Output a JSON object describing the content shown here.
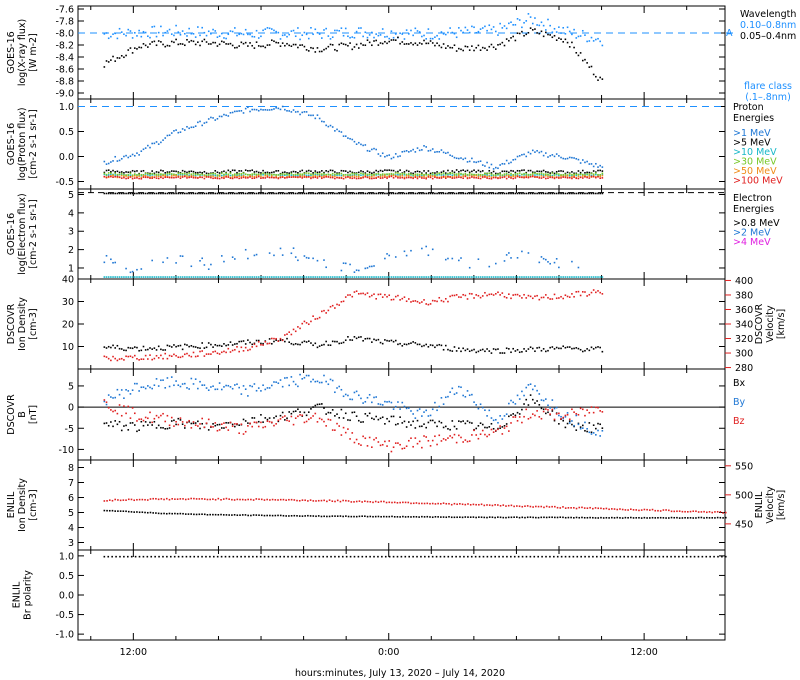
{
  "colors": {
    "black": "#000000",
    "blue": "#1f77d4",
    "light_blue": "#1e90ff",
    "cyan": "#18b8c8",
    "green": "#78c828",
    "orange": "#f08c18",
    "red": "#e02020",
    "magenta": "#e020e0"
  },
  "chart_data": {
    "type": "scatter",
    "xlabel": "hours:minutes, July 13, 2020 – July 14, 2020",
    "x_ticks": [
      "12:00",
      "0:00",
      "12:00"
    ],
    "x_range_hours": [
      -14.6,
      15.8
    ],
    "data_end_hour": 10.0,
    "panels": [
      {
        "id": "xray",
        "ylabel": [
          "GOES-16",
          "log(X-ray flux)",
          "[W m-2]"
        ],
        "yticks": [
          "-7.6",
          "-7.8",
          "-8.0",
          "-8.2",
          "-8.4",
          "-8.6",
          "-8.8",
          "-9.0"
        ],
        "ylim": [
          -9.1,
          -7.55
        ],
        "legend_title": "Wavelength",
        "legend": [
          "0.10–0.8nm",
          "0.05–0.4nm"
        ],
        "marker_A": "A",
        "flare_label": [
          "flare class",
          "(.1–.8nm)"
        ],
        "series": [
          {
            "name": "0.10–0.8nm",
            "values": [
              -8.0,
              -7.98,
              -7.96,
              -7.98,
              -8.0,
              -7.99,
              -8.0,
              -7.97,
              -7.98,
              -8.0,
              -7.98,
              -7.95,
              -7.75,
              -7.97,
              -8.1
            ]
          },
          {
            "name": "0.05–0.4nm",
            "values": [
              -8.5,
              -8.2,
              -8.15,
              -8.15,
              -8.2,
              -8.15,
              -8.25,
              -8.2,
              -8.1,
              -8.15,
              -8.25,
              -8.2,
              -7.95,
              -8.1,
              -8.8
            ]
          }
        ]
      },
      {
        "id": "proton",
        "ylabel": [
          "GOES-16",
          "log(Proton flux)",
          "[cm-2 s-1 sr-1]"
        ],
        "yticks": [
          "1.0",
          "0.5",
          "0.0",
          "-0.5"
        ],
        "ylim": [
          -0.65,
          1.15
        ],
        "legend_title": [
          "Proton",
          "Energies"
        ],
        "legend": [
          ">1 MeV",
          ">5 MeV",
          ">10 MeV",
          ">30 MeV",
          ">50 MeV",
          ">100 MeV"
        ],
        "series": [
          {
            "name": ">1 MeV",
            "values": [
              -0.1,
              0.1,
              0.5,
              0.75,
              0.95,
              1.0,
              0.8,
              0.3,
              0.0,
              0.2,
              0.0,
              -0.2,
              0.1,
              0.0,
              -0.2
            ]
          },
          {
            "name": ">5 MeV",
            "values": [
              -0.28,
              -0.3,
              -0.28,
              -0.3,
              -0.28,
              -0.3,
              -0.28,
              -0.3,
              -0.28,
              -0.3,
              -0.28,
              -0.3,
              -0.28,
              -0.3,
              -0.28
            ]
          },
          {
            "name": ">10 MeV",
            "values": [
              -0.35,
              -0.36,
              -0.35,
              -0.36,
              -0.35,
              -0.36,
              -0.35,
              -0.36,
              -0.35,
              -0.36,
              -0.35,
              -0.36,
              -0.35,
              -0.36,
              -0.35
            ]
          },
          {
            "name": ">30 MeV",
            "values": [
              -0.33,
              -0.34,
              -0.33,
              -0.34,
              -0.33,
              -0.34,
              -0.33,
              -0.34,
              -0.33,
              -0.34,
              -0.33,
              -0.34,
              -0.33,
              -0.34,
              -0.33
            ]
          },
          {
            "name": ">50 MeV",
            "values": [
              -0.38,
              -0.39,
              -0.38,
              -0.39,
              -0.38,
              -0.39,
              -0.38,
              -0.39,
              -0.38,
              -0.39,
              -0.38,
              -0.39,
              -0.38,
              -0.39,
              -0.38
            ]
          },
          {
            "name": ">100 MeV",
            "values": [
              -0.4,
              -0.41,
              -0.4,
              -0.41,
              -0.4,
              -0.41,
              -0.4,
              -0.41,
              -0.4,
              -0.41,
              -0.4,
              -0.41,
              -0.4,
              -0.41,
              -0.4
            ]
          }
        ]
      },
      {
        "id": "electron",
        "ylabel": [
          "GOES-16",
          "log(Electron flux)",
          "[cm-2 s-1 sr-1]"
        ],
        "yticks": [
          "5",
          "4",
          "3",
          "2",
          "1"
        ],
        "ylim": [
          0.4,
          5.3
        ],
        "legend_title": [
          "Electron",
          "Energies"
        ],
        "legend": [
          ">0.8 MeV",
          ">2 MeV",
          ">4 MeV"
        ],
        "series": [
          {
            "name": ">0.8 MeV",
            "values": [
              5.1,
              5.1,
              5.1,
              5.1,
              5.1,
              5.1,
              5.1,
              5.1,
              5.1,
              5.1,
              5.1,
              5.1,
              5.1,
              5.1,
              5.1
            ]
          },
          {
            "name": ">2 MeV",
            "values": [
              1.5,
              0.9,
              1.6,
              1.2,
              1.8,
              2.0,
              1.4,
              1.1,
              1.6,
              1.9,
              1.3,
              1.5,
              1.8,
              1.2,
              1.6
            ]
          },
          {
            "name": ">4 MeV",
            "values": [
              0.55,
              0.55,
              0.55,
              0.55,
              0.55,
              0.55,
              0.55,
              0.55,
              0.55,
              0.55,
              0.55,
              0.55,
              0.55,
              0.55,
              0.55
            ]
          }
        ]
      },
      {
        "id": "dscovr_plasma",
        "ylabel": [
          "DSCOVR",
          "Ion Density",
          "[cm-3]"
        ],
        "yticks": [
          "40",
          "30",
          "20",
          "10"
        ],
        "ylim": [
          0,
          40
        ],
        "ylabel_right": [
          "DSCOVR",
          "Velocity",
          "[km/s]"
        ],
        "yticks_right": [
          "400",
          "380",
          "360",
          "340",
          "320",
          "300",
          "280"
        ],
        "ylim_right": [
          278,
          402
        ],
        "series": [
          {
            "name": "Ion Density",
            "values": [
              10,
              9.5,
              10,
              11,
              12,
              13,
              11,
              14,
              12,
              11,
              9,
              8.5,
              9,
              9.5,
              9
            ]
          },
          {
            "name": "Velocity",
            "values": [
              293,
              295,
              297,
              301,
              308,
              322,
              352,
              383,
              378,
              371,
              378,
              383,
              376,
              380,
              386
            ]
          }
        ]
      },
      {
        "id": "dscovr_mag",
        "ylabel": [
          "DSCOVR",
          "B",
          "[nT]"
        ],
        "yticks": [
          "5",
          "0",
          "-5",
          "-10"
        ],
        "ylim": [
          -12.5,
          9
        ],
        "legend": [
          "Bx",
          "By",
          "Bz"
        ],
        "series": [
          {
            "name": "Bx",
            "values": [
              -4,
              -4.5,
              -3.5,
              -4.5,
              -3,
              -2,
              0,
              -2,
              -3,
              -4,
              -4,
              -5,
              2,
              -4,
              -5
            ]
          },
          {
            "name": "By",
            "values": [
              2,
              5,
              6,
              5,
              4,
              6,
              7,
              3,
              1,
              -2,
              5,
              -3,
              5,
              -2,
              -6
            ]
          },
          {
            "name": "Bz",
            "values": [
              1,
              -2,
              -3,
              -4,
              -5,
              -3,
              -2,
              -7,
              -9,
              -8,
              -7,
              -6,
              -1,
              -2,
              0
            ]
          }
        ]
      },
      {
        "id": "enlil_plasma",
        "ylabel": [
          "ENLIL",
          "Ion Density",
          "[cm-3]"
        ],
        "yticks": [
          "8",
          "7",
          "6",
          "5",
          "4",
          "3"
        ],
        "ylim": [
          2.5,
          8.5
        ],
        "ylabel_right": [
          "ENLIL",
          "Velocity",
          "[km/s]"
        ],
        "yticks_right": [
          "550",
          "500",
          "450"
        ],
        "ylim_right": [
          405,
          560
        ],
        "series": [
          {
            "name": "Ion Density",
            "values": [
              5.2,
              5.0,
              4.9,
              4.85,
              4.8,
              4.78,
              4.75,
              4.73,
              4.72,
              4.7,
              4.7,
              4.7
            ]
          },
          {
            "name": "Velocity",
            "values": [
              492,
              494,
              494,
              493,
              491,
              489,
              486,
              483,
              480,
              477,
              474,
              471
            ]
          }
        ]
      },
      {
        "id": "enlil_polarity",
        "ylabel": [
          "ENLIL",
          "Br polarity"
        ],
        "yticks": [
          "1.0",
          "0.5",
          "0.0",
          "-0.5",
          "-1.0"
        ],
        "ylim": [
          -1.15,
          1.15
        ],
        "series": [
          {
            "name": "Br polarity",
            "values": [
              1,
              1,
              1,
              1,
              1,
              1,
              1,
              1,
              1,
              1,
              1,
              1
            ]
          }
        ]
      }
    ]
  }
}
